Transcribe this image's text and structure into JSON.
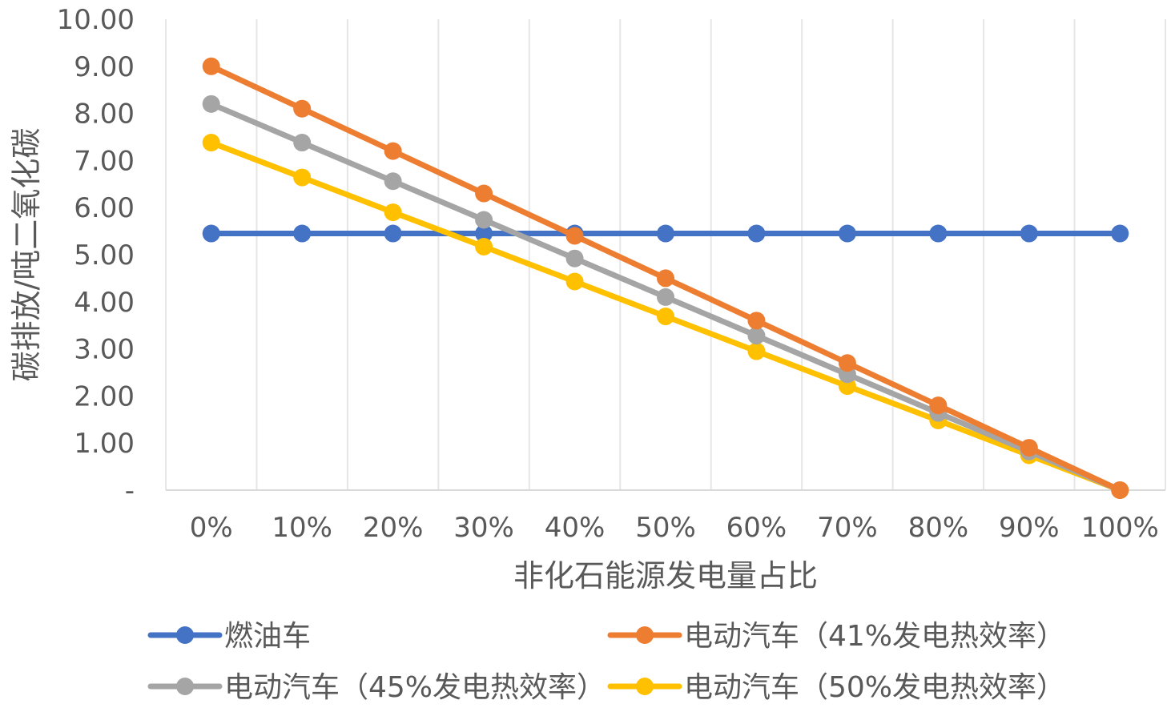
{
  "chart_data": {
    "type": "line",
    "xlabel": "非化石能源发电量占比",
    "ylabel": "碳排放/吨二氧化碳",
    "x": [
      "0%",
      "10%",
      "20%",
      "30%",
      "40%",
      "50%",
      "60%",
      "70%",
      "80%",
      "90%",
      "100%"
    ],
    "y_ticks": [
      "-",
      "1.00",
      "2.00",
      "3.00",
      "4.00",
      "5.00",
      "6.00",
      "7.00",
      "8.00",
      "9.00",
      "10.00"
    ],
    "ylim": [
      0,
      10
    ],
    "grid": "vertical",
    "legend_position": "bottom",
    "series": [
      {
        "name": "燃油车",
        "color": "#4472C4",
        "values": [
          5.45,
          5.45,
          5.45,
          5.45,
          5.45,
          5.45,
          5.45,
          5.45,
          5.45,
          5.45,
          5.45
        ]
      },
      {
        "name": "电动汽车（41%发电热效率）",
        "color": "#ED7D31",
        "values": [
          9.0,
          8.1,
          7.2,
          6.3,
          5.4,
          4.5,
          3.6,
          2.7,
          1.8,
          0.9,
          0
        ]
      },
      {
        "name": "电动汽车（45%发电热效率）",
        "color": "#A5A5A5",
        "values": [
          8.2,
          7.38,
          6.56,
          5.74,
          4.92,
          4.1,
          3.28,
          2.46,
          1.64,
          0.82,
          0
        ]
      },
      {
        "name": "电动汽车（50%发电热效率）",
        "color": "#FFC000",
        "values": [
          7.38,
          6.64,
          5.9,
          5.17,
          4.43,
          3.69,
          2.95,
          2.21,
          1.48,
          0.74,
          0
        ]
      }
    ]
  }
}
